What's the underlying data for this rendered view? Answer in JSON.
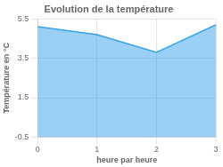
{
  "chart_data": {
    "type": "area",
    "title": "Evolution de la température",
    "xlabel": "heure par heure",
    "ylabel": "Température en °C",
    "x": [
      0,
      1,
      2,
      3
    ],
    "values": [
      5.1,
      4.7,
      3.8,
      5.2
    ],
    "xlim": [
      0,
      3
    ],
    "xticks": [
      0,
      1,
      2,
      3
    ],
    "ylim": [
      -0.5,
      5.5
    ],
    "yticks": [
      -0.5,
      1.5,
      3.5,
      5.5
    ],
    "grid": true
  }
}
